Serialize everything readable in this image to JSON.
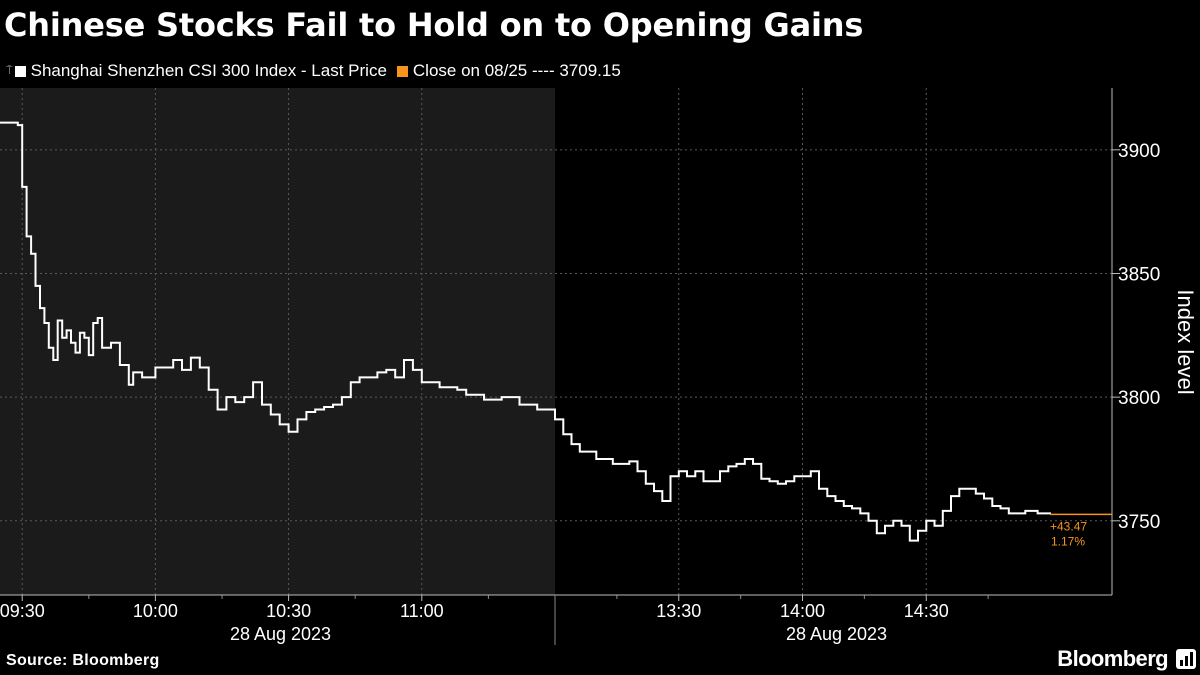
{
  "header": {
    "title": "Chinese Stocks Fail to Hold on to Opening Gains"
  },
  "footer": {
    "source": "Source: Bloomberg",
    "brand": "Bloomberg"
  },
  "chart_data": {
    "type": "line",
    "title": "Chinese Stocks Fail to Hold on to Opening Gains",
    "ylabel": "Index level",
    "ylim": [
      3720,
      3925
    ],
    "y_ticks": [
      3750,
      3800,
      3850,
      3900
    ],
    "y_axis_position": "right",
    "grid": true,
    "legend_position": "top-left",
    "legend": [
      {
        "label": "Shanghai Shenzhen CSI 300 Index - Last Price",
        "color": "#ffffff"
      },
      {
        "label": "Close on 08/25 ---- 3709.15",
        "color": "#f7941d"
      }
    ],
    "sessions": [
      {
        "start": "09:25",
        "end": "11:30",
        "shaded": true,
        "date_label": "28 Aug 2023"
      },
      {
        "start": "13:00",
        "end": "15:00",
        "shaded": false,
        "date_label": "28 Aug 2023"
      }
    ],
    "x_ticks": [
      "09:30",
      "10:00",
      "10:30",
      "11:00",
      "13:30",
      "14:00",
      "14:30"
    ],
    "x_minor_ticks": [
      "09:45",
      "10:15",
      "10:45",
      "11:15",
      "13:15",
      "13:45",
      "14:15",
      "14:45"
    ],
    "series": [
      {
        "name": "Shanghai Shenzhen CSI 300 Index - Last Price",
        "color": "#ffffff",
        "points": [
          [
            "09:25",
            3911
          ],
          [
            "09:29",
            3910
          ],
          [
            "09:30",
            3885
          ],
          [
            "09:31",
            3865
          ],
          [
            "09:32",
            3858
          ],
          [
            "09:33",
            3845
          ],
          [
            "09:34",
            3836
          ],
          [
            "09:35",
            3830
          ],
          [
            "09:36",
            3820
          ],
          [
            "09:37",
            3815
          ],
          [
            "09:38",
            3831
          ],
          [
            "09:39",
            3824
          ],
          [
            "09:40",
            3827
          ],
          [
            "09:41",
            3822
          ],
          [
            "09:42",
            3818
          ],
          [
            "09:43",
            3826
          ],
          [
            "09:44",
            3824
          ],
          [
            "09:45",
            3817
          ],
          [
            "09:46",
            3830
          ],
          [
            "09:47",
            3832
          ],
          [
            "09:48",
            3820
          ],
          [
            "09:50",
            3822
          ],
          [
            "09:52",
            3813
          ],
          [
            "09:54",
            3805
          ],
          [
            "09:55",
            3810
          ],
          [
            "09:57",
            3808
          ],
          [
            "10:00",
            3812
          ],
          [
            "10:02",
            3812
          ],
          [
            "10:04",
            3815
          ],
          [
            "10:06",
            3811
          ],
          [
            "10:08",
            3816
          ],
          [
            "10:10",
            3812
          ],
          [
            "10:12",
            3803
          ],
          [
            "10:14",
            3795
          ],
          [
            "10:16",
            3800
          ],
          [
            "10:18",
            3798
          ],
          [
            "10:20",
            3800
          ],
          [
            "10:22",
            3806
          ],
          [
            "10:24",
            3797
          ],
          [
            "10:26",
            3793
          ],
          [
            "10:28",
            3789
          ],
          [
            "10:30",
            3786
          ],
          [
            "10:32",
            3791
          ],
          [
            "10:34",
            3794
          ],
          [
            "10:36",
            3795
          ],
          [
            "10:38",
            3796
          ],
          [
            "10:40",
            3797
          ],
          [
            "10:42",
            3800
          ],
          [
            "10:44",
            3806
          ],
          [
            "10:46",
            3808
          ],
          [
            "10:48",
            3808
          ],
          [
            "10:50",
            3810
          ],
          [
            "10:52",
            3811
          ],
          [
            "10:54",
            3808
          ],
          [
            "10:56",
            3815
          ],
          [
            "10:58",
            3811
          ],
          [
            "11:00",
            3806
          ],
          [
            "11:04",
            3804
          ],
          [
            "11:08",
            3803
          ],
          [
            "11:10",
            3801
          ],
          [
            "11:14",
            3799
          ],
          [
            "11:18",
            3800
          ],
          [
            "11:22",
            3797
          ],
          [
            "11:26",
            3795
          ],
          [
            "11:30",
            3794
          ],
          [
            "13:00",
            3791
          ],
          [
            "13:02",
            3785
          ],
          [
            "13:04",
            3781
          ],
          [
            "13:06",
            3778
          ],
          [
            "13:10",
            3775
          ],
          [
            "13:14",
            3773
          ],
          [
            "13:18",
            3774
          ],
          [
            "13:20",
            3770
          ],
          [
            "13:22",
            3765
          ],
          [
            "13:24",
            3762
          ],
          [
            "13:26",
            3758
          ],
          [
            "13:28",
            3768
          ],
          [
            "13:30",
            3770
          ],
          [
            "13:32",
            3768
          ],
          [
            "13:34",
            3770
          ],
          [
            "13:36",
            3766
          ],
          [
            "13:38",
            3766
          ],
          [
            "13:40",
            3770
          ],
          [
            "13:42",
            3772
          ],
          [
            "13:44",
            3773
          ],
          [
            "13:46",
            3775
          ],
          [
            "13:48",
            3773
          ],
          [
            "13:50",
            3767
          ],
          [
            "13:52",
            3766
          ],
          [
            "13:54",
            3765
          ],
          [
            "13:56",
            3766
          ],
          [
            "13:58",
            3768
          ],
          [
            "14:00",
            3768
          ],
          [
            "14:02",
            3770
          ],
          [
            "14:04",
            3763
          ],
          [
            "14:06",
            3760
          ],
          [
            "14:08",
            3758
          ],
          [
            "14:10",
            3756
          ],
          [
            "14:12",
            3755
          ],
          [
            "14:14",
            3753
          ],
          [
            "14:16",
            3750
          ],
          [
            "14:18",
            3745
          ],
          [
            "14:20",
            3748
          ],
          [
            "14:22",
            3750
          ],
          [
            "14:24",
            3748
          ],
          [
            "14:26",
            3742
          ],
          [
            "14:28",
            3746
          ],
          [
            "14:30",
            3750
          ],
          [
            "14:32",
            3748
          ],
          [
            "14:34",
            3754
          ],
          [
            "14:36",
            3760
          ],
          [
            "14:38",
            3763
          ],
          [
            "14:40",
            3763
          ],
          [
            "14:42",
            3761
          ],
          [
            "14:44",
            3759
          ],
          [
            "14:46",
            3756
          ],
          [
            "14:48",
            3755
          ],
          [
            "14:50",
            3753
          ],
          [
            "14:54",
            3754
          ],
          [
            "14:57",
            3753
          ],
          [
            "15:00",
            3752.62
          ]
        ]
      }
    ],
    "reference_line": {
      "name": "Close on 08/25 ---- 3709.15",
      "value": 3709.15,
      "color": "#f7941d",
      "annotations": [
        "+43.47",
        "1.17%"
      ]
    }
  }
}
